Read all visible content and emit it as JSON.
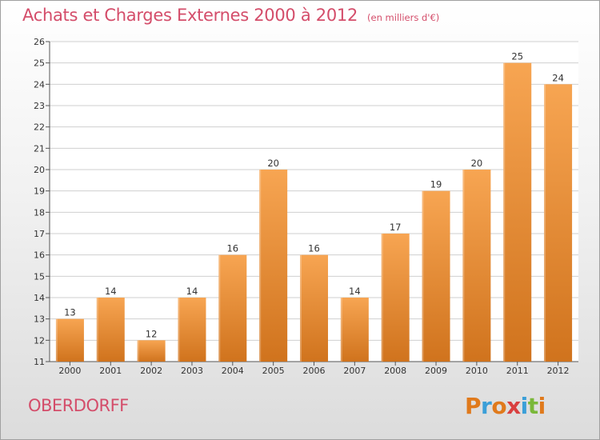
{
  "header": {
    "title": "Achats et Charges Externes 2000 à 2012",
    "unit": "(en milliers d'€)"
  },
  "footer": {
    "place": "OBERDORFF",
    "logo_letters": [
      "P",
      "r",
      "o",
      "x",
      "i",
      "t",
      "i"
    ],
    "logo_colors": [
      "#e07a1c",
      "#3b9fd8",
      "#e07a1c",
      "#d94040",
      "#3b9fd8",
      "#7ab83a",
      "#e07a1c"
    ]
  },
  "chart_data": {
    "type": "bar",
    "title": "Achats et Charges Externes 2000 à 2012",
    "unit": "(en milliers d'€)",
    "categories": [
      "2000",
      "2001",
      "2002",
      "2003",
      "2004",
      "2005",
      "2006",
      "2007",
      "2008",
      "2009",
      "2010",
      "2011",
      "2012"
    ],
    "values": [
      13,
      14,
      12,
      14,
      16,
      20,
      16,
      14,
      17,
      19,
      20,
      25,
      24
    ],
    "data_labels": [
      "13",
      "14",
      "12",
      "14",
      "16",
      "20",
      "16",
      "14",
      "17",
      "19",
      "20",
      "25",
      "24"
    ],
    "yticks": [
      11,
      12,
      13,
      14,
      15,
      16,
      17,
      18,
      19,
      20,
      21,
      22,
      23,
      24,
      25,
      26
    ],
    "ytick_labels": [
      "11",
      "12",
      "13",
      "14",
      "15",
      "16",
      "17",
      "18",
      "19",
      "20",
      "21",
      "22",
      "23",
      "24",
      "25",
      "26"
    ],
    "ylim": [
      11,
      26
    ],
    "grid": true,
    "colors": {
      "bar_light": "#f7a552",
      "bar_dark": "#d0731d",
      "grid": "#cfcfcf"
    }
  }
}
